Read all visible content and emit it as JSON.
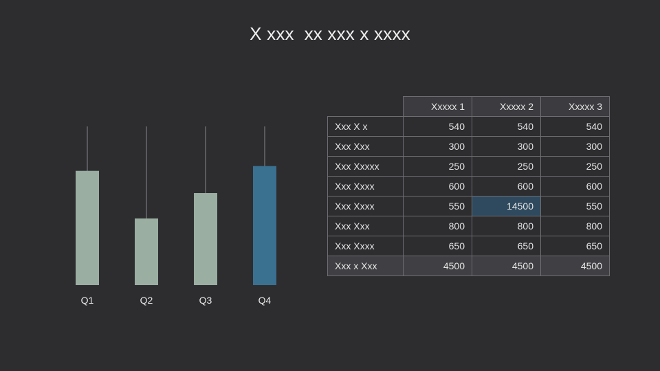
{
  "title": "X xxx  xx xxx x xxxx",
  "colors": {
    "background": "#2d2d30",
    "bar_default": "#9aaea2",
    "bar_highlight": "#3a7090",
    "whisker": "#6a6a6e",
    "cell_highlight": "#2f4a5e"
  },
  "chart_data": {
    "type": "bar",
    "categories": [
      "Q1",
      "Q2",
      "Q3",
      "Q4"
    ],
    "values": [
      72,
      42,
      58,
      75
    ],
    "whisker_max": [
      100,
      100,
      100,
      100
    ],
    "highlight_index": 3,
    "ylim": [
      0,
      100
    ],
    "grid": false,
    "title": "",
    "xlabel": "",
    "ylabel": ""
  },
  "table": {
    "columns": [
      "Xxxxx 1",
      "Xxxxx 2",
      "Xxxxx 3"
    ],
    "rows": [
      {
        "label": "Xxx X x",
        "values": [
          "540",
          "540",
          "540"
        ]
      },
      {
        "label": "Xxx Xxx",
        "values": [
          "300",
          "300",
          "300"
        ]
      },
      {
        "label": "Xxx Xxxxx",
        "values": [
          "250",
          "250",
          "250"
        ]
      },
      {
        "label": "Xxx Xxxx",
        "values": [
          "600",
          "600",
          "600"
        ]
      },
      {
        "label": "Xxx Xxxx",
        "values": [
          "550",
          "14500",
          "550"
        ],
        "highlight_col": 1
      },
      {
        "label": "Xxx Xxx",
        "values": [
          "800",
          "800",
          "800"
        ]
      },
      {
        "label": "Xxx Xxxx",
        "values": [
          "650",
          "650",
          "650"
        ]
      },
      {
        "label": "Xxx x Xxx",
        "values": [
          "4500",
          "4500",
          "4500"
        ],
        "total": true
      }
    ]
  }
}
